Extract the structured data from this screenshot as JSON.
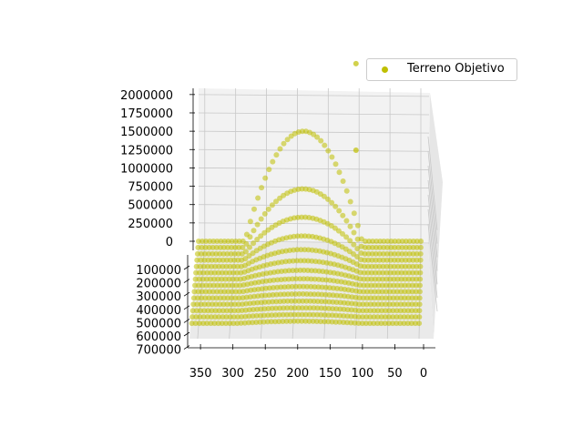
{
  "chart_data": {
    "type": "scatter",
    "projection": "3d",
    "grid": true,
    "legend_placement": "top-right",
    "series": [
      {
        "name": "Terreno Objetivo",
        "color": "#bfbf00"
      }
    ],
    "x_axis": {
      "ticks": [
        350,
        300,
        250,
        200,
        150,
        100,
        50,
        0
      ],
      "tick_labels": [
        "350",
        "300",
        "250",
        "200",
        "150",
        "100",
        "50",
        "0"
      ],
      "range": [
        0,
        360
      ]
    },
    "y_axis": {
      "ticks": [
        100000,
        200000,
        300000,
        400000,
        500000,
        600000,
        700000
      ],
      "tick_labels": [
        "100000",
        "200000",
        "300000",
        "400000",
        "500000",
        "600000",
        "700000"
      ],
      "range": [
        0,
        700000
      ]
    },
    "z_axis": {
      "ticks": [
        0,
        250000,
        500000,
        750000,
        1000000,
        1250000,
        1500000,
        1750000,
        2000000
      ],
      "tick_labels": [
        "0",
        "250000",
        "500000",
        "750000",
        "1000000",
        "1250000",
        "1500000",
        "1750000",
        "2000000"
      ],
      "range": [
        0,
        2000000
      ]
    },
    "surface_model": {
      "row_depths": [
        0,
        50000,
        100000,
        150000,
        200000,
        250000,
        300000,
        350000,
        400000,
        450000,
        500000,
        550000,
        600000,
        650000
      ],
      "row_peak_heights": [
        1500000,
        800000,
        500000,
        330000,
        230000,
        165000,
        120000,
        90000,
        70000,
        55000,
        45000,
        38000,
        32000,
        28000
      ],
      "hump_center_x": 190,
      "hump_half_width_x": 95,
      "plateau_x_range": [
        0,
        360
      ],
      "x_sample_step": 6
    },
    "outliers": [
      {
        "x": 105,
        "y": 0,
        "z": 1900000
      },
      {
        "x": 105,
        "y": 0,
        "z": 720000
      }
    ]
  }
}
